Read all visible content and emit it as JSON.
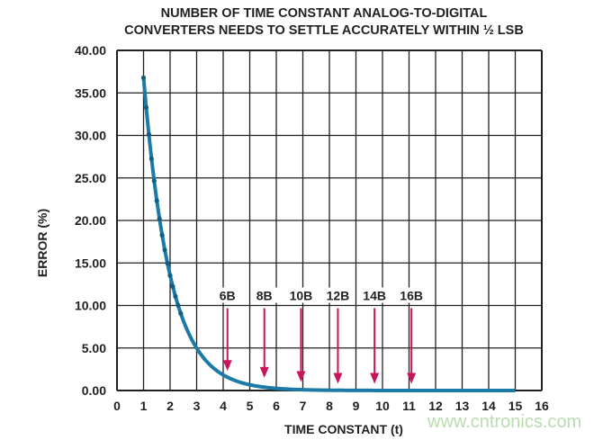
{
  "chart_data": {
    "type": "line",
    "title_lines": [
      "NUMBER OF TIME CONSTANT ANALOG-TO-DIGITAL",
      "CONVERTERS NEEDS TO SETTLE ACCURATELY WITHIN ½ LSB"
    ],
    "xlabel": "TIME CONSTANT (t)",
    "ylabel": "ERROR (%)",
    "xlim": [
      0,
      16
    ],
    "ylim": [
      0,
      40
    ],
    "xticks": [
      "0",
      "1",
      "2",
      "3",
      "4",
      "5",
      "6",
      "7",
      "8",
      "9",
      "10",
      "11",
      "12",
      "13",
      "14",
      "15",
      "16"
    ],
    "yticks": [
      "0.00",
      "5.00",
      "10.00",
      "15.00",
      "20.00",
      "25.00",
      "30.00",
      "35.00",
      "40.00"
    ],
    "grid": true,
    "series": [
      {
        "function": "100*exp(-t)",
        "x_range": [
          1,
          15
        ],
        "x_step": 0.1,
        "color": "#1b7aa6"
      }
    ],
    "annotations": [
      {
        "label": "6B",
        "x": 4.16,
        "y_from": 10,
        "y_to": 2.3
      },
      {
        "label": "8B",
        "x": 5.55,
        "y_from": 10,
        "y_to": 1.5
      },
      {
        "label": "10B",
        "x": 6.93,
        "y_from": 10,
        "y_to": 1.0
      },
      {
        "label": "12B",
        "x": 8.32,
        "y_from": 10,
        "y_to": 0.8
      },
      {
        "label": "14B",
        "x": 9.7,
        "y_from": 10,
        "y_to": 0.8
      },
      {
        "label": "16B",
        "x": 11.09,
        "y_from": 10,
        "y_to": 0.8
      }
    ],
    "annotation_color": "#c8145a"
  },
  "watermark": "www.cntronics.com"
}
